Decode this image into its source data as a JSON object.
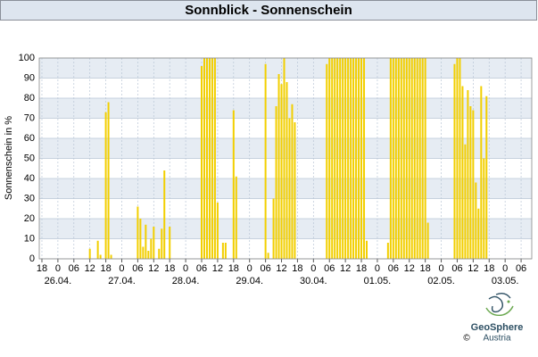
{
  "chart_data": {
    "type": "bar",
    "title": "Sonnblick - Sonnenschein",
    "y_label": "Sonnenschein in %",
    "x": [
      12,
      15,
      16,
      18,
      19,
      20,
      30,
      31,
      32,
      33,
      34,
      35,
      36,
      38,
      39,
      40,
      42,
      54,
      55,
      56,
      57,
      58,
      59,
      60,
      62,
      63,
      66,
      67,
      78,
      79,
      81,
      82,
      83,
      84,
      85,
      86,
      87,
      88,
      89,
      101,
      102,
      103,
      104,
      105,
      106,
      107,
      108,
      109,
      110,
      111,
      112,
      113,
      114,
      115,
      116,
      124,
      125,
      126,
      127,
      128,
      129,
      130,
      131,
      132,
      133,
      134,
      135,
      136,
      137,
      138,
      139,
      149,
      150,
      151,
      152,
      153,
      154,
      155,
      156,
      157,
      158,
      159,
      160,
      161
    ],
    "values": [
      5,
      9,
      2,
      73,
      78,
      2,
      26,
      20,
      6,
      17,
      4,
      10,
      16,
      5,
      15,
      44,
      16,
      96,
      100,
      100,
      100,
      100,
      100,
      28,
      8,
      8,
      74,
      41,
      97,
      3,
      30,
      76,
      92,
      87,
      100,
      88,
      70,
      77,
      68,
      97,
      100,
      100,
      100,
      100,
      100,
      100,
      100,
      100,
      100,
      100,
      100,
      100,
      100,
      100,
      9,
      8,
      100,
      100,
      100,
      100,
      100,
      100,
      100,
      100,
      100,
      100,
      100,
      100,
      100,
      100,
      18,
      97,
      100,
      100,
      86,
      57,
      84,
      76,
      74,
      38,
      25,
      86,
      50,
      81
    ],
    "color": "#f2cf00",
    "xlim": [
      -7,
      178
    ],
    "xticks": [
      {
        "value": -6,
        "label": "18"
      },
      0,
      {
        "value": 6,
        "label": "06"
      },
      12,
      18,
      {
        "value": 24,
        "label": "0"
      },
      {
        "value": 30,
        "label": "06"
      },
      {
        "value": 36,
        "label": "12"
      },
      {
        "value": 42,
        "label": "18"
      },
      {
        "value": 48,
        "label": "0"
      },
      {
        "value": 54,
        "label": "06"
      },
      {
        "value": 60,
        "label": "12"
      },
      {
        "value": 66,
        "label": "18"
      },
      {
        "value": 72,
        "label": "0"
      },
      {
        "value": 78,
        "label": "06"
      },
      {
        "value": 84,
        "label": "12"
      },
      {
        "value": 90,
        "label": "18"
      },
      {
        "value": 96,
        "label": "0"
      },
      {
        "value": 102,
        "label": "06"
      },
      {
        "value": 108,
        "label": "12"
      },
      {
        "value": 114,
        "label": "18"
      },
      {
        "value": 120,
        "label": "0"
      },
      {
        "value": 126,
        "label": "06"
      },
      {
        "value": 132,
        "label": "12"
      },
      {
        "value": 138,
        "label": "18"
      },
      {
        "value": 144,
        "label": "0"
      },
      {
        "value": 150,
        "label": "06"
      },
      {
        "value": 156,
        "label": "12"
      },
      {
        "value": 162,
        "label": "18"
      },
      {
        "value": 168,
        "label": "0"
      },
      {
        "value": 174,
        "label": "06"
      }
    ],
    "date_labels": [
      {
        "value": 0,
        "label": "26.04."
      },
      {
        "value": 24,
        "label": "27.04."
      },
      {
        "value": 48,
        "label": "28.04."
      },
      {
        "value": 72,
        "label": "29.04."
      },
      {
        "value": 96,
        "label": "30.04."
      },
      {
        "value": 120,
        "label": "01.05."
      },
      {
        "value": 144,
        "label": "02.05."
      },
      {
        "value": 168,
        "label": "03.05."
      }
    ],
    "ylim": [
      0,
      100
    ],
    "yticks": [
      0,
      10,
      20,
      30,
      40,
      50,
      60,
      70,
      80,
      90,
      100
    ],
    "grid": true
  },
  "logo": {
    "name": "GeoSphere",
    "sub": "Austria",
    "copyright": "©"
  }
}
